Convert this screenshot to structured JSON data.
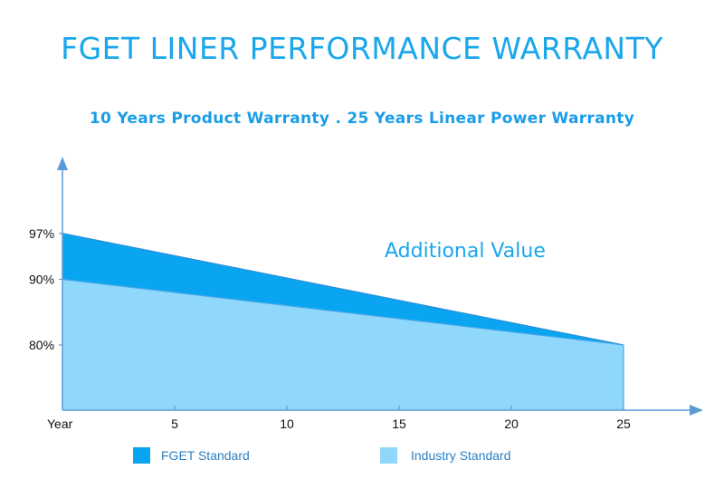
{
  "header": {
    "title": "FGET LINER PERFORMANCE WARRANTY",
    "subtitle": "10 Years Product Warranty . 25 Years Linear Power Warranty"
  },
  "chart_data": {
    "type": "area",
    "title": "FGET LINER PERFORMANCE WARRANTY",
    "subtitle": "10 Years Product Warranty . 25 Years Linear Power Warranty",
    "x": [
      0,
      25
    ],
    "x_ticks": [
      5,
      10,
      15,
      20,
      25
    ],
    "x_origin_label": "Year",
    "y_ticks": [
      {
        "value": 97,
        "label": "97%"
      },
      {
        "value": 90,
        "label": "90%"
      },
      {
        "value": 80,
        "label": "80%"
      }
    ],
    "series": [
      {
        "name": "FGET Standard",
        "values": [
          97,
          80
        ],
        "color": "#0aa5f0"
      },
      {
        "name": "Industry Standard",
        "values": [
          90,
          80
        ],
        "color": "#8fd8fc"
      }
    ],
    "annotation": "Additional Value",
    "legend_position": "bottom",
    "grid": false
  }
}
